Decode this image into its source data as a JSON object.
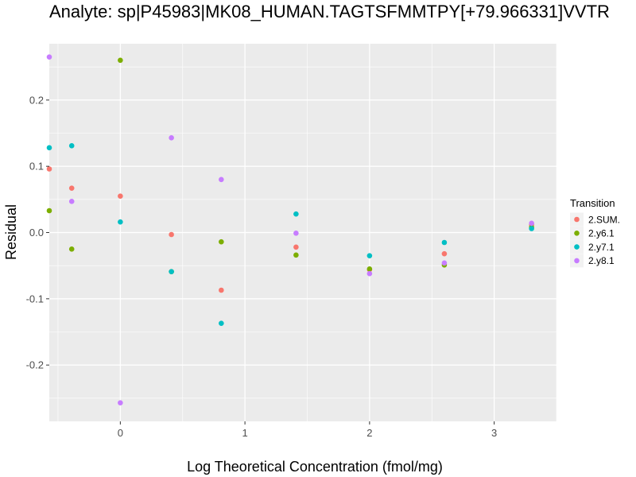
{
  "chart_data": {
    "type": "scatter",
    "title": "Analyte: sp|P45983|MK08_HUMAN.TAGTSFMMTPY[+79.966331]VVTR",
    "xlabel": "Log Theoretical Concentration (fmol/mg)",
    "ylabel": "Residual",
    "xlim": [
      -0.57,
      3.5
    ],
    "ylim": [
      -0.285,
      0.285
    ],
    "x_ticks": [
      0,
      1,
      2,
      3
    ],
    "y_ticks": [
      -0.2,
      -0.1,
      0.0,
      0.1,
      0.2
    ],
    "x_tick_labels": [
      "0",
      "1",
      "2",
      "3"
    ],
    "y_tick_labels": [
      "-0.2",
      "-0.1",
      "0.0",
      "0.1",
      "0.2"
    ],
    "grid": true,
    "legend": {
      "title": "Transition",
      "position": "right"
    },
    "colors": {
      "panel_bg": "#EBEBEB",
      "grid": "#FFFFFF",
      "2.SUM.": "#F8766D",
      "2.y6.1": "#7CAE00",
      "2.y7.1": "#00BFC4",
      "2.y8.1": "#C77CFF"
    },
    "series": [
      {
        "name": "2.SUM.",
        "points": [
          [
            -0.57,
            0.096
          ],
          [
            -0.39,
            0.067
          ],
          [
            0.0,
            0.055
          ],
          [
            0.41,
            -0.003
          ],
          [
            0.81,
            -0.087
          ],
          [
            1.41,
            -0.022
          ],
          [
            2.0,
            -0.056
          ],
          [
            2.6,
            -0.032
          ],
          [
            3.3,
            0.012
          ]
        ]
      },
      {
        "name": "2.y6.1",
        "points": [
          [
            -0.57,
            0.033
          ],
          [
            -0.39,
            -0.025
          ],
          [
            0.0,
            0.26
          ],
          [
            0.41,
            -0.059
          ],
          [
            0.81,
            -0.014
          ],
          [
            1.41,
            -0.034
          ],
          [
            2.0,
            -0.055
          ],
          [
            2.6,
            -0.049
          ],
          [
            3.3,
            0.008
          ]
        ]
      },
      {
        "name": "2.y7.1",
        "points": [
          [
            -0.57,
            0.128
          ],
          [
            -0.39,
            0.131
          ],
          [
            0.0,
            0.016
          ],
          [
            0.41,
            -0.059
          ],
          [
            0.81,
            -0.137
          ],
          [
            1.41,
            0.028
          ],
          [
            2.0,
            -0.035
          ],
          [
            2.6,
            -0.015
          ],
          [
            3.3,
            0.006
          ]
        ]
      },
      {
        "name": "2.y8.1",
        "points": [
          [
            -0.57,
            0.265
          ],
          [
            -0.39,
            0.047
          ],
          [
            0.0,
            -0.257
          ],
          [
            0.41,
            0.143
          ],
          [
            0.81,
            0.08
          ],
          [
            1.41,
            -0.001
          ],
          [
            2.0,
            -0.062
          ],
          [
            2.6,
            -0.046
          ],
          [
            3.3,
            0.014
          ]
        ]
      }
    ]
  }
}
